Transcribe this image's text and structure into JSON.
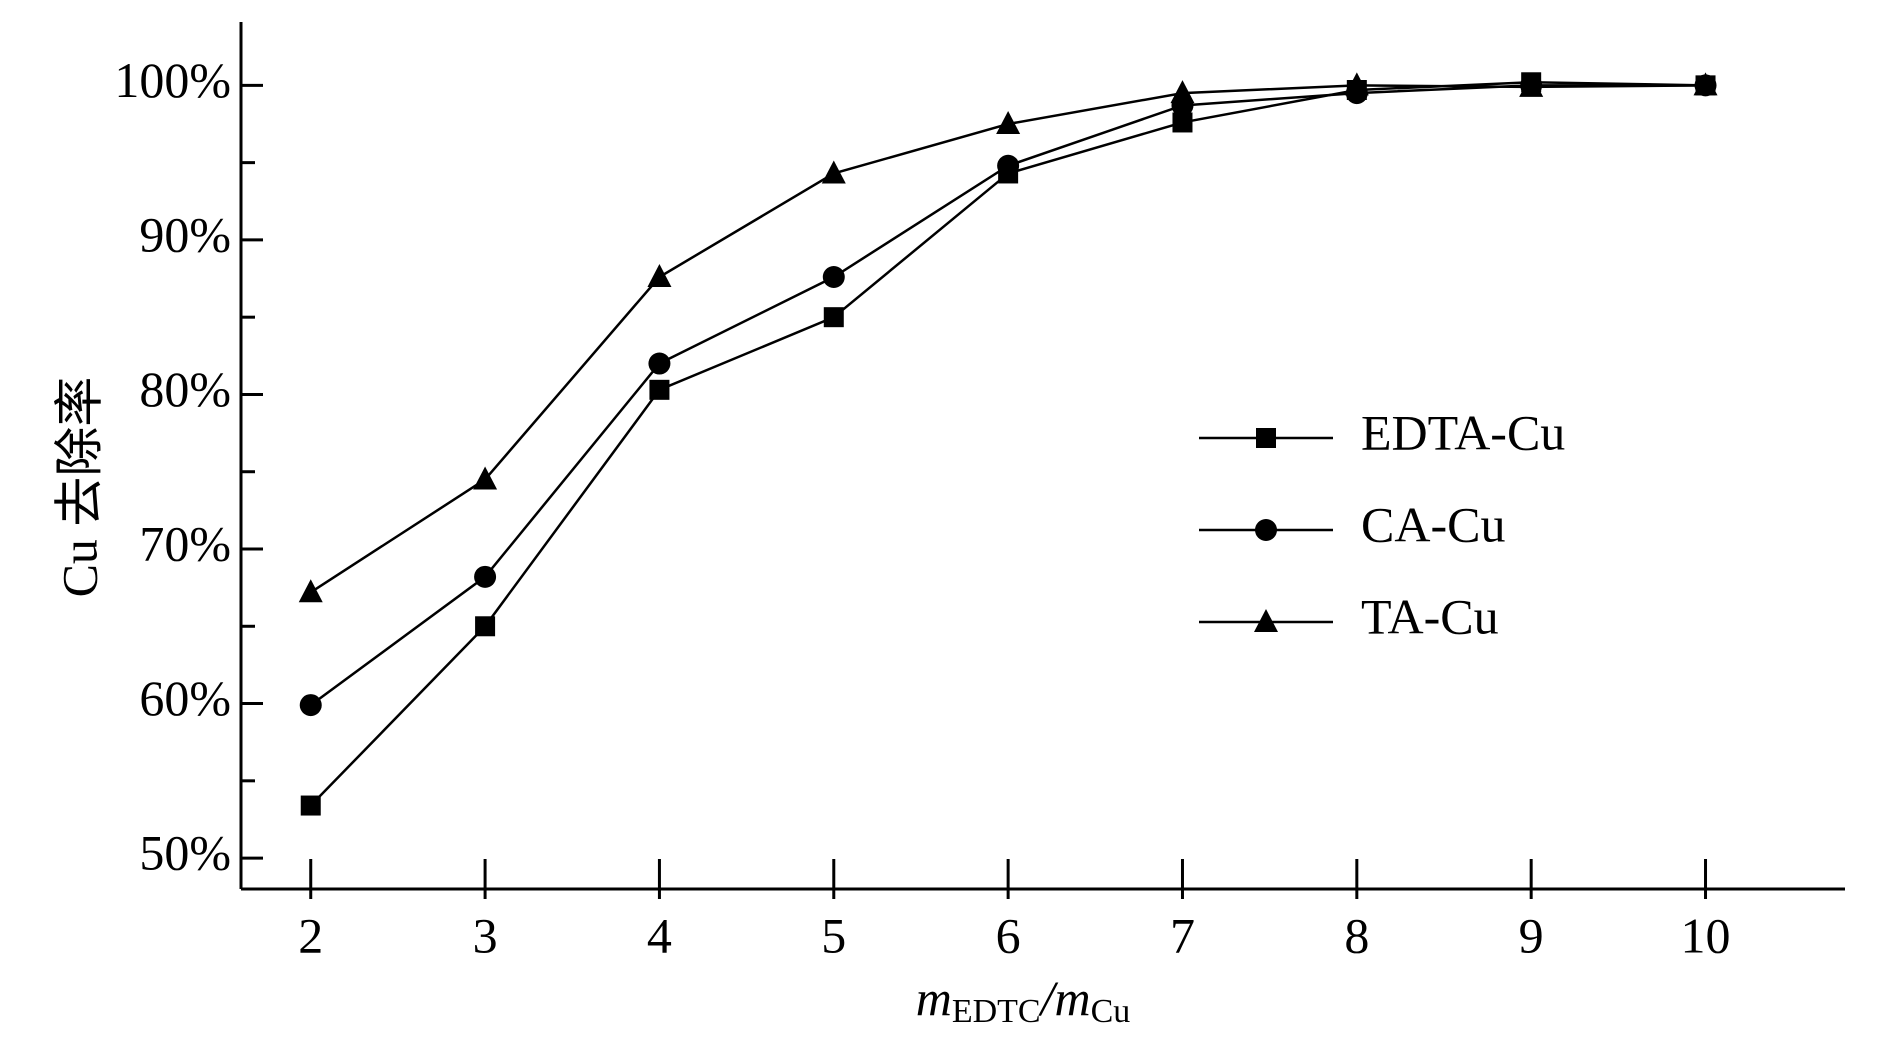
{
  "chart_data": {
    "type": "line",
    "y_label": "Cu 去除率",
    "x_label_parts": [
      "m",
      "EDTC",
      "/m",
      "Cu"
    ],
    "x": [
      2,
      3,
      4,
      5,
      6,
      7,
      8,
      9,
      10
    ],
    "xlim": [
      1.6,
      10.8
    ],
    "xticks": [
      2,
      3,
      4,
      5,
      6,
      7,
      8,
      9,
      10
    ],
    "ylim": [
      48,
      104.1
    ],
    "yticks": [
      {
        "value": 50,
        "label": "50%"
      },
      {
        "value": 60,
        "label": "60%"
      },
      {
        "value": 70,
        "label": "70%"
      },
      {
        "value": 80,
        "label": "80%"
      },
      {
        "value": 90,
        "label": "90%"
      },
      {
        "value": 100,
        "label": "100%"
      }
    ],
    "yminorticks": [
      55,
      65,
      75,
      85,
      95
    ],
    "grid": false,
    "legend_position": "right",
    "series": [
      {
        "name": "EDTA-Cu",
        "color": "#000000",
        "marker": "square",
        "values": [
          53.4,
          65.0,
          80.3,
          85.0,
          94.3,
          97.6,
          99.7,
          100.2,
          100.0
        ]
      },
      {
        "name": "CA-Cu",
        "color": "#000000",
        "marker": "circle",
        "values": [
          59.9,
          68.2,
          82.0,
          87.6,
          94.8,
          98.7,
          99.5,
          100.0,
          100.0
        ]
      },
      {
        "name": "TA-Cu",
        "color": "#000000",
        "marker": "triangle",
        "values": [
          67.2,
          74.5,
          87.6,
          94.3,
          97.5,
          99.5,
          100.0,
          99.9,
          100.0
        ]
      }
    ]
  }
}
